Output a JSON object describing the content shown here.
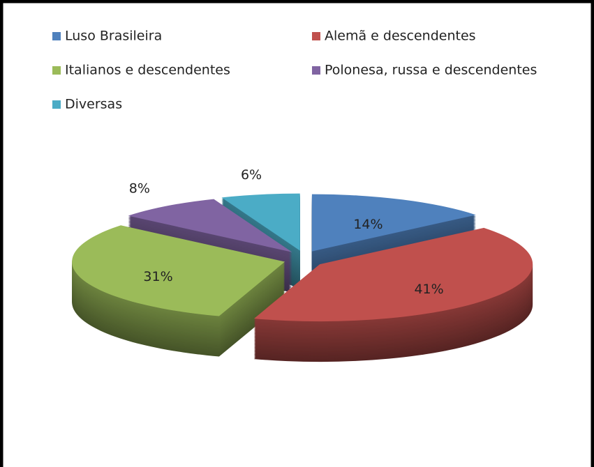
{
  "chart_data": {
    "type": "pie",
    "categories": [
      "Luso Brasileira",
      "Alemã e descendentes",
      "Italianos e descendentes",
      "Polonesa, russa e descendentes",
      "Diversas"
    ],
    "values": [
      14,
      41,
      31,
      8,
      6
    ],
    "value_labels": [
      "14%",
      "41%",
      "31%",
      "8%",
      "6%"
    ],
    "colors": [
      "#4f81bd",
      "#c0504d",
      "#9bbb59",
      "#8064a2",
      "#4bacc6"
    ],
    "legend": "top"
  }
}
